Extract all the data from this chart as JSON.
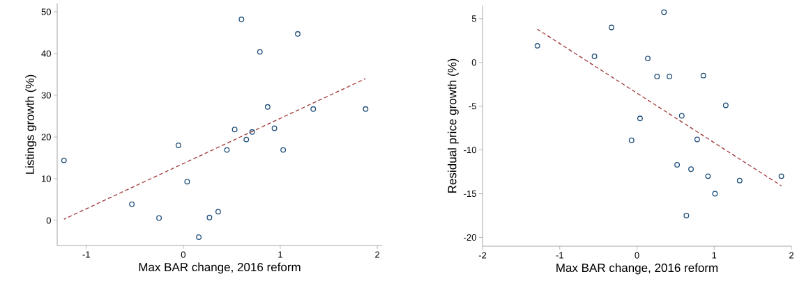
{
  "chart_data": [
    {
      "type": "scatter",
      "xlabel": "Max BAR change, 2016 reform",
      "ylabel": "Listings growth (%)",
      "xlim": [
        -1.3,
        2.05
      ],
      "ylim": [
        -6,
        52
      ],
      "xticks": [
        -1,
        0,
        1,
        2
      ],
      "yticks": [
        0,
        10,
        20,
        30,
        40,
        50
      ],
      "series": [
        {
          "color": "#1f4e79",
          "marker": "circle",
          "x": [
            -1.23,
            -0.53,
            -0.25,
            -0.05,
            0.04,
            0.16,
            0.27,
            0.36,
            0.45,
            0.53,
            0.6,
            0.65,
            0.71,
            0.79,
            0.87,
            0.94,
            1.03,
            1.18,
            1.34,
            1.88
          ],
          "values": [
            14.4,
            3.9,
            0.6,
            18.0,
            9.3,
            -4.0,
            0.7,
            2.1,
            16.9,
            21.8,
            48.2,
            19.4,
            21.2,
            40.4,
            27.2,
            22.1,
            16.9,
            44.7,
            26.7,
            26.7
          ]
        },
        {
          "type": "line",
          "color": "#9e3535",
          "line_style": "dashed",
          "x": [
            -1.23,
            1.88
          ],
          "values": [
            0.3,
            34.0
          ]
        }
      ]
    },
    {
      "type": "scatter",
      "xlabel": "Max BAR change, 2016 reform",
      "ylabel": "Residual price growth (%)",
      "xlim": [
        -2,
        2
      ],
      "ylim": [
        -21,
        6.5
      ],
      "xticks": [
        -2,
        -1,
        0,
        1,
        2
      ],
      "yticks": [
        5,
        0,
        -5,
        -10,
        -15,
        -20
      ],
      "series": [
        {
          "color": "#1f4e79",
          "marker": "circle",
          "x": [
            -1.29,
            -0.55,
            -0.33,
            -0.07,
            0.04,
            0.14,
            0.26,
            0.35,
            0.42,
            0.52,
            0.58,
            0.64,
            0.7,
            0.78,
            0.86,
            0.92,
            1.01,
            1.15,
            1.33,
            1.87
          ],
          "values": [
            1.9,
            0.7,
            4.0,
            -8.9,
            -6.4,
            0.45,
            -1.6,
            5.75,
            -1.6,
            -11.7,
            -6.1,
            -17.5,
            -12.2,
            -8.8,
            -1.5,
            -13.0,
            -15.0,
            -4.9,
            -13.5,
            -13.0
          ]
        },
        {
          "type": "line",
          "color": "#9e3535",
          "line_style": "dashed",
          "x": [
            -1.29,
            1.87
          ],
          "values": [
            3.8,
            -14.1
          ]
        }
      ]
    }
  ]
}
